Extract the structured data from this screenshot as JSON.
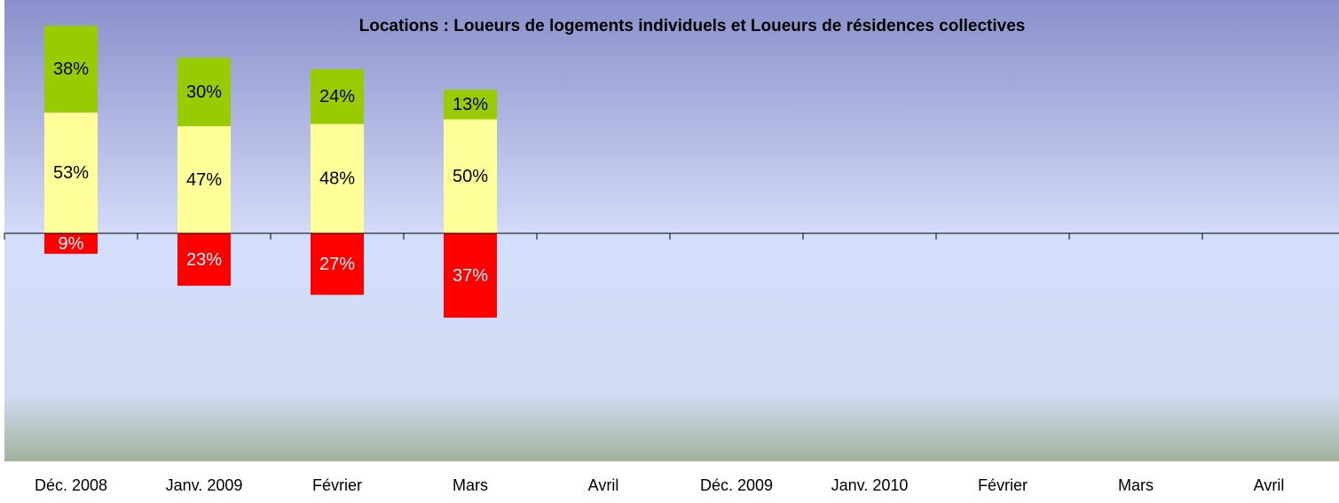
{
  "chart_data": {
    "type": "bar",
    "subtitle": "Locations : Loueurs de logements individuels et Loueurs de résidences collectives",
    "categories": [
      "Déc. 2008",
      "Janv. 2009",
      "Février",
      "Mars",
      "Avril",
      "Déc. 2009",
      "Janv. 2010",
      "Février",
      "Mars",
      "Avril"
    ],
    "stacked": true,
    "ylim": [
      -100,
      100
    ],
    "series": [
      {
        "color": "#ff0000",
        "values": [
          -9,
          -23,
          -27,
          -37,
          null,
          null,
          null,
          null,
          null,
          null
        ],
        "value_labels": [
          "9%",
          "23%",
          "27%",
          "37%",
          null,
          null,
          null,
          null,
          null,
          null
        ]
      },
      {
        "color": "#ffff99",
        "values": [
          53,
          47,
          48,
          50,
          null,
          null,
          null,
          null,
          null,
          null
        ],
        "value_labels": [
          "53%",
          "47%",
          "48%",
          "50%",
          null,
          null,
          null,
          null,
          null,
          null
        ]
      },
      {
        "color": "#99cc00",
        "values": [
          38,
          30,
          24,
          13,
          null,
          null,
          null,
          null,
          null,
          null
        ],
        "value_labels": [
          "38%",
          "30%",
          "24%",
          "13%",
          null,
          null,
          null,
          null,
          null,
          null
        ]
      }
    ]
  }
}
